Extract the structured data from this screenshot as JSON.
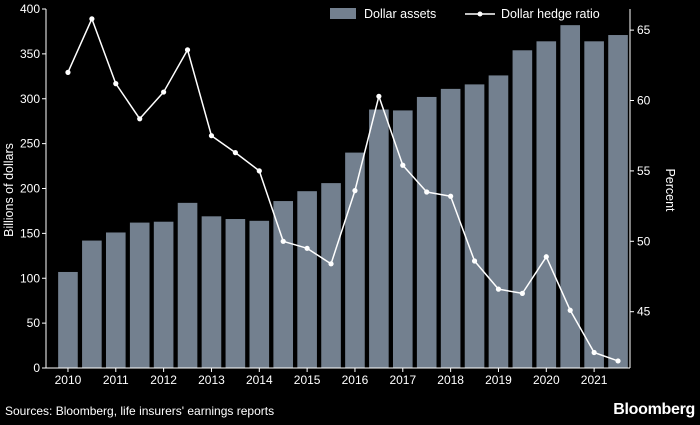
{
  "chart_data": {
    "type": "bar",
    "title": "",
    "xlabel": "",
    "ylabel": "Billions of dollars",
    "ylabel_right": "Percent",
    "ylim": [
      0,
      400
    ],
    "ylim_right": [
      41,
      66.5
    ],
    "yticks": [
      0,
      50,
      100,
      150,
      200,
      250,
      300,
      350,
      400
    ],
    "yticks_right": [
      45,
      50,
      55,
      60,
      65
    ],
    "x_tick_labels": [
      "2010",
      "2011",
      "2012",
      "2013",
      "2014",
      "2015",
      "2016",
      "2017",
      "2018",
      "2019",
      "2020",
      "2021"
    ],
    "legend_position": "top-right",
    "colors": {
      "bar": "#73808f",
      "line": "#ffffff",
      "background": "#000000",
      "axis": "#ffffff"
    },
    "periods": [
      "2010 H1",
      "2010 H2",
      "2011 H1",
      "2011 H2",
      "2012 H1",
      "2012 H2",
      "2013 H1",
      "2013 H2",
      "2014 H1",
      "2014 H2",
      "2015 H1",
      "2015 H2",
      "2016 H1",
      "2016 H2",
      "2017 H1",
      "2017 H2",
      "2018 H1",
      "2018 H2",
      "2019 H1",
      "2019 H2",
      "2020 H1",
      "2020 H2",
      "2021 H1",
      "2021 H2"
    ],
    "series": [
      {
        "name": "Dollar assets",
        "type": "bar",
        "axis": "left",
        "values": [
          107,
          142,
          151,
          162,
          163,
          184,
          169,
          166,
          164,
          186,
          197,
          206,
          240,
          288,
          287,
          302,
          311,
          316,
          326,
          354,
          364,
          382,
          364,
          371
        ]
      },
      {
        "name": "Dollar hedge ratio",
        "type": "line",
        "axis": "right",
        "values": [
          62.0,
          65.8,
          61.2,
          58.7,
          60.6,
          63.6,
          57.5,
          56.3,
          55.0,
          50.0,
          49.5,
          48.4,
          53.6,
          60.3,
          55.4,
          53.5,
          53.2,
          48.6,
          46.6,
          46.3,
          48.9,
          45.1,
          42.1,
          41.5
        ]
      }
    ]
  },
  "footer": {
    "source": "Sources: Bloomberg, life insurers' earnings reports",
    "brand": "Bloomberg"
  }
}
